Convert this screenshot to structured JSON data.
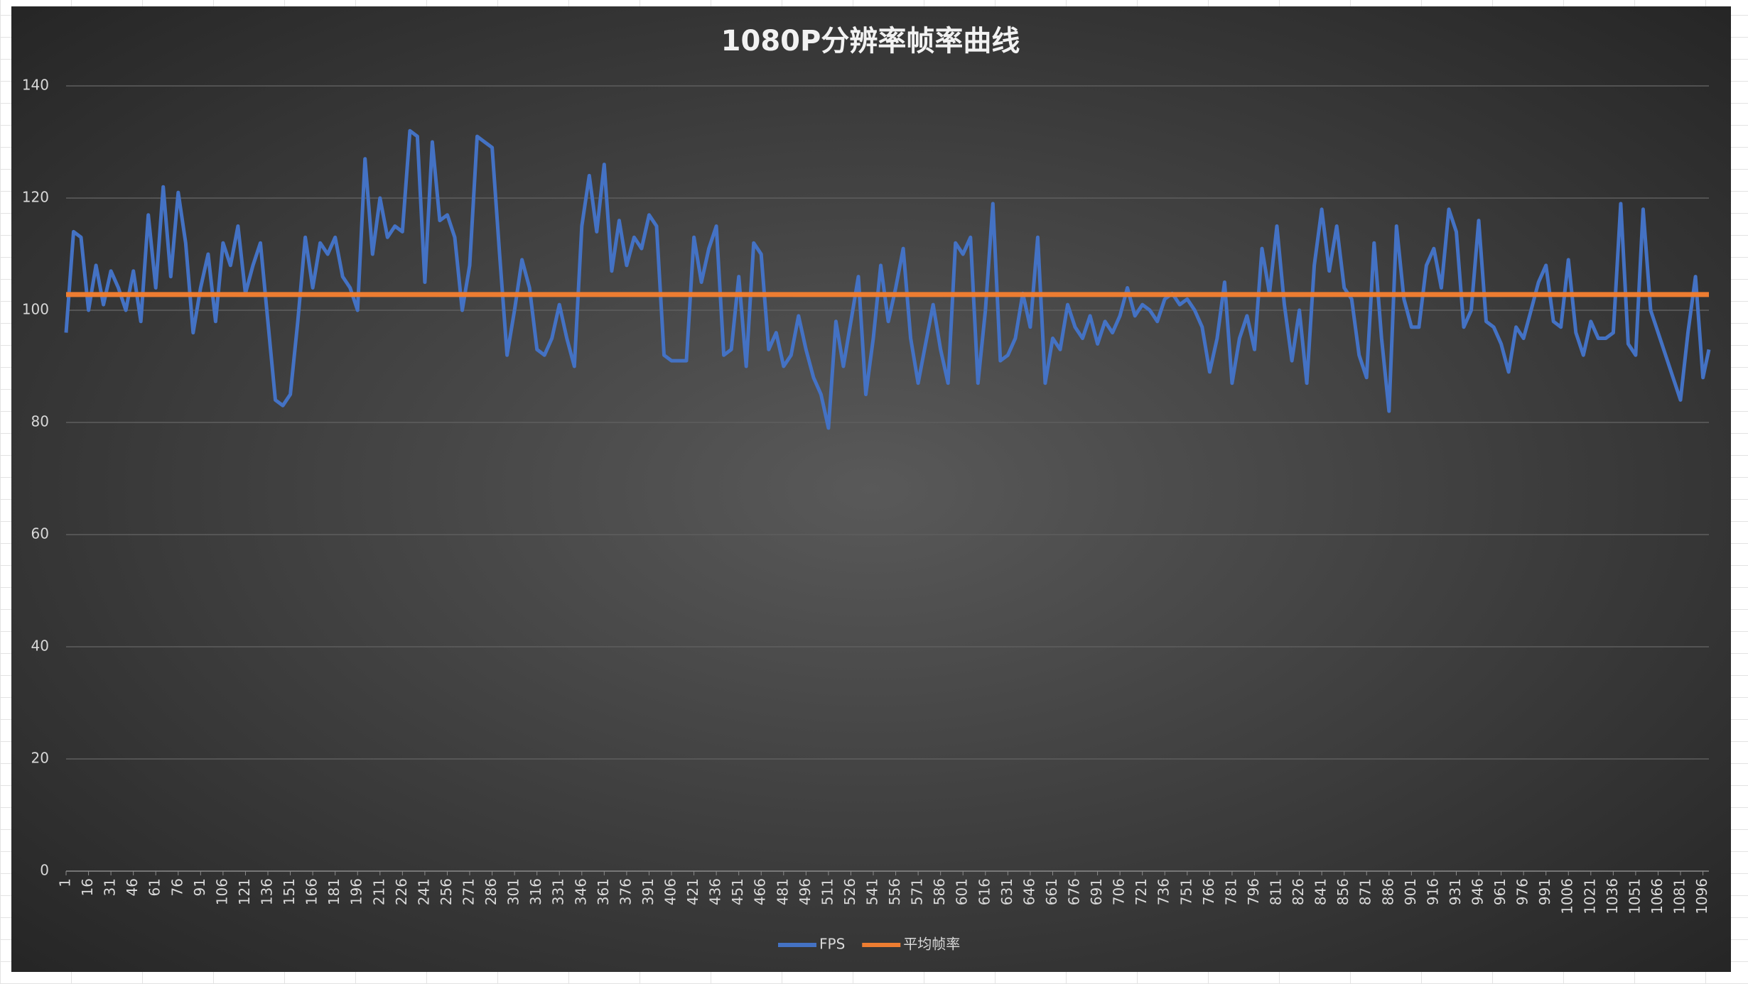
{
  "chart_data": {
    "type": "line",
    "title": "1080P分辨率帧率曲线",
    "ylim": [
      0,
      140
    ],
    "yticks": [
      0,
      20,
      40,
      60,
      80,
      100,
      120,
      140
    ],
    "grid": true,
    "xlim": [
      1,
      1100
    ],
    "xticks": [
      1,
      16,
      31,
      46,
      61,
      76,
      91,
      106,
      121,
      136,
      151,
      166,
      181,
      196,
      211,
      226,
      241,
      256,
      271,
      286,
      301,
      316,
      331,
      346,
      361,
      376,
      391,
      406,
      421,
      436,
      451,
      466,
      481,
      496,
      511,
      526,
      541,
      556,
      571,
      586,
      601,
      616,
      631,
      646,
      661,
      676,
      691,
      706,
      721,
      736,
      751,
      766,
      781,
      796,
      811,
      826,
      841,
      856,
      871,
      886,
      901,
      916,
      931,
      946,
      961,
      976,
      991,
      1006,
      1021,
      1036,
      1051,
      1066,
      1081,
      1096
    ],
    "legend": "bottom",
    "series": [
      {
        "name": "FPS",
        "color": "#4472c4",
        "x": [
          1,
          6,
          11,
          16,
          21,
          26,
          31,
          36,
          41,
          46,
          51,
          56,
          61,
          66,
          71,
          76,
          81,
          86,
          91,
          96,
          101,
          106,
          111,
          116,
          121,
          126,
          131,
          136,
          141,
          146,
          151,
          156,
          161,
          166,
          171,
          176,
          181,
          186,
          191,
          196,
          201,
          206,
          211,
          216,
          221,
          226,
          231,
          236,
          241,
          246,
          251,
          256,
          261,
          266,
          271,
          276,
          281,
          286,
          291,
          296,
          301,
          306,
          311,
          316,
          321,
          326,
          331,
          336,
          341,
          346,
          351,
          356,
          361,
          366,
          371,
          376,
          381,
          386,
          391,
          396,
          401,
          406,
          411,
          416,
          421,
          426,
          431,
          436,
          441,
          446,
          451,
          456,
          461,
          466,
          471,
          476,
          481,
          486,
          491,
          496,
          501,
          506,
          511,
          516,
          521,
          526,
          531,
          536,
          541,
          546,
          551,
          556,
          561,
          566,
          571,
          576,
          581,
          586,
          591,
          596,
          601,
          606,
          611,
          616,
          621,
          626,
          631,
          636,
          641,
          646,
          651,
          656,
          661,
          666,
          671,
          676,
          681,
          686,
          691,
          696,
          701,
          706,
          711,
          716,
          721,
          726,
          731,
          736,
          741,
          746,
          751,
          756,
          761,
          766,
          771,
          776,
          781,
          786,
          791,
          796,
          801,
          806,
          811,
          816,
          821,
          826,
          831,
          836,
          841,
          846,
          851,
          856,
          861,
          866,
          871,
          876,
          881,
          886,
          891,
          896,
          901,
          906,
          911,
          916,
          921,
          926,
          931,
          936,
          941,
          946,
          951,
          956,
          961,
          966,
          971,
          976,
          981,
          986,
          991,
          996,
          1001,
          1006,
          1011,
          1016,
          1021,
          1026,
          1031,
          1036,
          1041,
          1046,
          1051,
          1056,
          1061,
          1066,
          1071,
          1076,
          1081,
          1086,
          1091,
          1096,
          1100
        ],
        "values": [
          96,
          114,
          113,
          100,
          108,
          101,
          107,
          104,
          100,
          107,
          98,
          117,
          104,
          122,
          106,
          121,
          112,
          96,
          104,
          110,
          98,
          112,
          108,
          115,
          103,
          108,
          112,
          98,
          84,
          83,
          85,
          98,
          113,
          104,
          112,
          110,
          113,
          106,
          104,
          100,
          127,
          110,
          120,
          113,
          115,
          114,
          132,
          131,
          105,
          130,
          116,
          117,
          113,
          100,
          108,
          131,
          130,
          129,
          110,
          92,
          100,
          109,
          104,
          93,
          92,
          95,
          101,
          95,
          90,
          115,
          124,
          114,
          126,
          107,
          116,
          108,
          113,
          111,
          117,
          115,
          92,
          91,
          91,
          91,
          113,
          105,
          111,
          115,
          92,
          93,
          106,
          90,
          112,
          110,
          93,
          96,
          90,
          92,
          99,
          93,
          88,
          85,
          79,
          98,
          90,
          98,
          106,
          85,
          95,
          108,
          98,
          104,
          111,
          95,
          87,
          94,
          101,
          93,
          87,
          112,
          110,
          113,
          87,
          100,
          119,
          91,
          92,
          95,
          103,
          97,
          113,
          87,
          95,
          93,
          101,
          97,
          95,
          99,
          94,
          98,
          96,
          99,
          104,
          99,
          101,
          100,
          98,
          102,
          103,
          101,
          102,
          100,
          97,
          89,
          95,
          105,
          87,
          95,
          99,
          93,
          111,
          103,
          115,
          101,
          91,
          100,
          87,
          108,
          118,
          107,
          115,
          104,
          102,
          92,
          88,
          112,
          95,
          82,
          115,
          102,
          97,
          97,
          108,
          111,
          104,
          118,
          114,
          97,
          100,
          116,
          98,
          97,
          94,
          89,
          97,
          95,
          100,
          105,
          108,
          98,
          97,
          109,
          96,
          92,
          98,
          95,
          95,
          96,
          119,
          94,
          92,
          118,
          100,
          96,
          92,
          88,
          84,
          96,
          106,
          88,
          93
        ]
      },
      {
        "name": "平均帧率",
        "color": "#ed7d31",
        "x": [
          1,
          1100
        ],
        "values": [
          102.8,
          102.8
        ]
      }
    ]
  }
}
